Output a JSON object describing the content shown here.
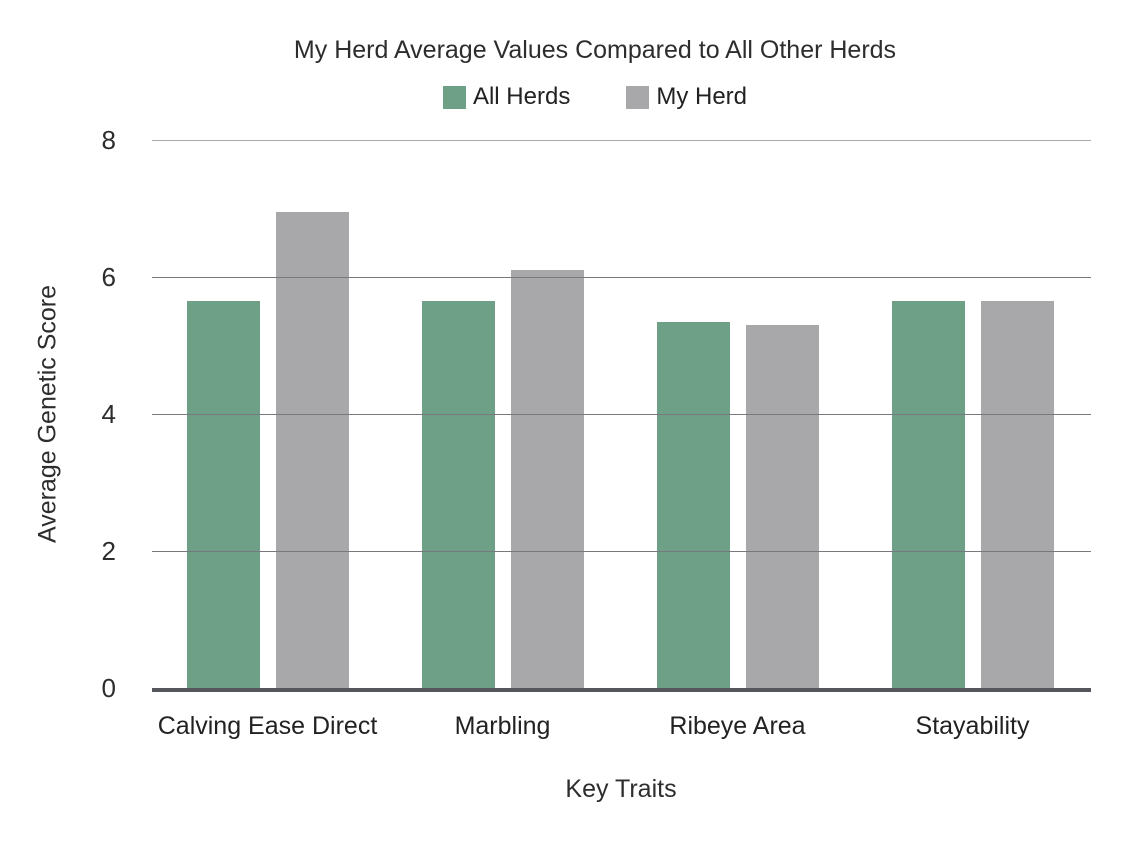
{
  "chart_data": {
    "type": "bar",
    "title": "My Herd Average Values Compared to All Other Herds",
    "categories": [
      "Calving Ease Direct",
      "Marbling",
      "Ribeye Area",
      "Stayability"
    ],
    "series": [
      {
        "name": "All Herds",
        "color": "#6E9F87",
        "values": [
          5.65,
          5.65,
          5.35,
          5.65
        ]
      },
      {
        "name": "My Herd",
        "color": "#A8A8AB",
        "values": [
          6.95,
          6.1,
          5.3,
          5.65
        ]
      }
    ],
    "xlabel": "Key Traits",
    "ylabel": "Average Genetic Score",
    "ylim": [
      0,
      8
    ],
    "yticks": [
      0,
      2,
      4,
      6,
      8
    ],
    "grid": true,
    "legend_position": "top",
    "colors": {
      "gridline": "#77797E",
      "top_gridline": "#A8AAAC",
      "baseline": "#54565B",
      "text": "#2D2D2D",
      "background": "#FFFFFF"
    }
  }
}
